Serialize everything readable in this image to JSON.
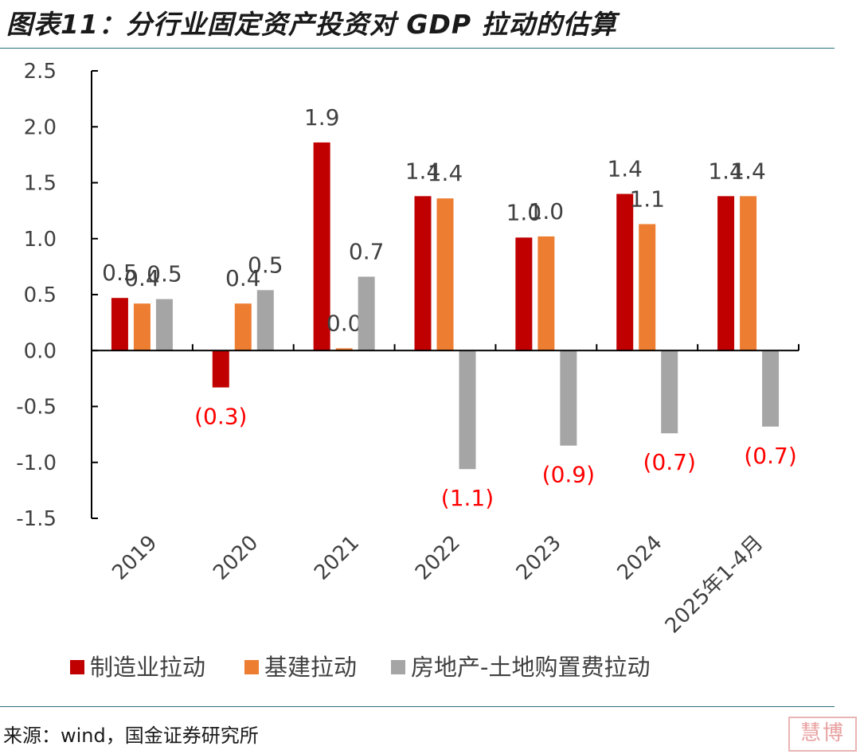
{
  "header": {
    "title": "图表11：分行业固定资产投资对 GDP 拉动的估算"
  },
  "footer": {
    "source": "来源：wind，国金证券研究所"
  },
  "chart_data": {
    "type": "bar",
    "categories": [
      "2019",
      "2020",
      "2021",
      "2022",
      "2023",
      "2024",
      "2025年1-4月"
    ],
    "series": [
      {
        "name": "制造业拉动",
        "color": "#c00000",
        "values": [
          0.47,
          -0.33,
          1.86,
          1.38,
          1.01,
          1.4,
          1.38
        ],
        "labels": [
          "0.5",
          "(0.3)",
          "1.9",
          "1.4",
          "1.0",
          "1.4",
          "1.4"
        ]
      },
      {
        "name": "基建拉动",
        "color": "#ed7d31",
        "values": [
          0.42,
          0.42,
          0.02,
          1.36,
          1.02,
          1.13,
          1.38
        ],
        "labels": [
          "0.4",
          "0.4",
          "0.0",
          "1.4",
          "1.0",
          "1.1",
          "1.4"
        ]
      },
      {
        "name": "房地产-土地购置费拉动",
        "color": "#a5a5a5",
        "values": [
          0.46,
          0.54,
          0.66,
          -1.06,
          -0.85,
          -0.74,
          -0.68
        ],
        "labels": [
          "0.5",
          "0.5",
          "0.7",
          "(1.1)",
          "(0.9)",
          "(0.7)",
          "(0.7)"
        ]
      }
    ],
    "ylim": [
      -1.5,
      2.5
    ],
    "yticks": [
      "2.5",
      "2.0",
      "1.5",
      "1.0",
      "0.5",
      "0.0",
      "-0.5",
      "-1.0",
      "-1.5"
    ],
    "negative_label_color": "#ff0000",
    "legend_position": "bottom",
    "grid": false
  },
  "watermark": "慧博"
}
